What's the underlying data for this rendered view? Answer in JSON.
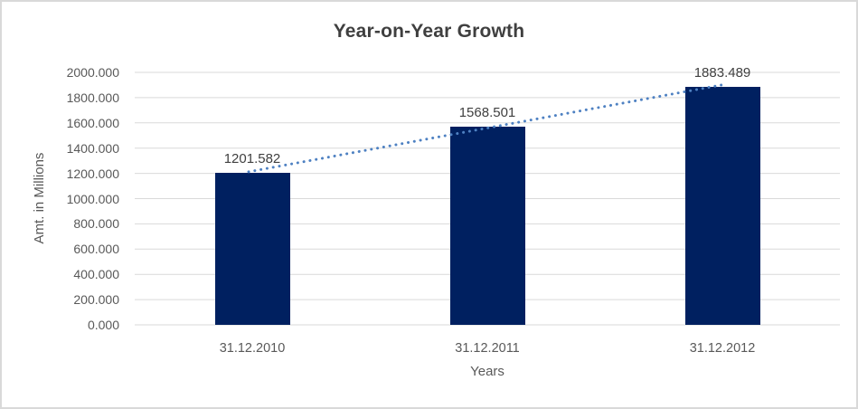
{
  "chart_data": {
    "type": "bar",
    "title": "Year-on-Year Growth",
    "xlabel": "Years",
    "ylabel": "Amt. in Millions",
    "categories": [
      "31.12.2010",
      "31.12.2011",
      "31.12.2012"
    ],
    "values": [
      1201.582,
      1568.501,
      1883.489
    ],
    "data_labels": [
      "1201.582",
      "1568.501",
      "1883.489"
    ],
    "ylim": [
      0,
      2000
    ],
    "ytick_step": 200,
    "ytick_labels": [
      "0.000",
      "200.000",
      "400.000",
      "600.000",
      "800.000",
      "1000.000",
      "1200.000",
      "1400.000",
      "1600.000",
      "1800.000",
      "2000.000"
    ],
    "grid": true,
    "legend": "none",
    "trendline": {
      "type": "linear",
      "style": "dotted",
      "from_category": "31.12.2010",
      "to_category": "31.12.2012"
    },
    "colors": {
      "bar": "#002060",
      "trendline": "#4E81C2",
      "grid": "#D9D9D9",
      "title_text": "#3F3F3F",
      "axis_text": "#595959",
      "label_text": "#404040",
      "border": "#D9D9D9",
      "background": "#FFFFFF"
    }
  }
}
